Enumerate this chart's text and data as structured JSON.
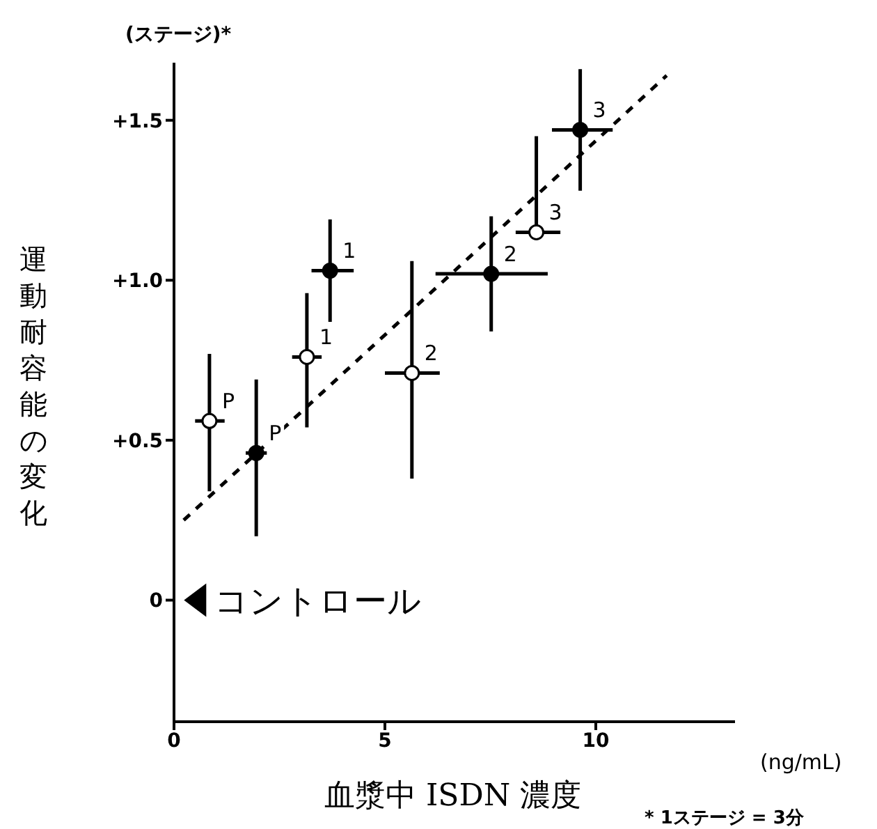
{
  "chart_data": {
    "type": "scatter",
    "xlabel": "血漿中 ISDN 濃度",
    "ylabel": "運動耐容能の変化",
    "annotations": [
      "(ステージ)*",
      "(ng/mL)",
      "* 1ステージ = 3分",
      {
        "text": "P",
        "x": 0.84,
        "y": 0.56
      },
      {
        "text": "1",
        "x": 3.15,
        "y": 0.76
      },
      {
        "text": "2",
        "x": 5.64,
        "y": 0.71
      },
      {
        "text": "3",
        "x": 8.59,
        "y": 1.15
      },
      {
        "text": "P",
        "x": 1.95,
        "y": 0.46
      },
      {
        "text": "1",
        "x": 3.7,
        "y": 1.03
      },
      {
        "text": "2",
        "x": 7.52,
        "y": 1.02
      },
      {
        "text": "3",
        "x": 9.63,
        "y": 1.47
      }
    ],
    "xlim": [
      0,
      13.3
    ],
    "xticks": [
      0,
      5,
      10
    ],
    "ylim": [
      -0.38,
      1.68
    ],
    "yticks": [
      {
        "value": 0,
        "label": "0"
      },
      {
        "value": 0.5,
        "label": "+0.5"
      },
      {
        "value": 1.0,
        "label": "+1.0"
      },
      {
        "value": 1.5,
        "label": "+1.5"
      }
    ],
    "series": [
      {
        "marker": "circle",
        "color": "#ffffff",
        "x": [
          0.84,
          3.15,
          5.64,
          8.59
        ],
        "values": [
          0.56,
          0.76,
          0.71,
          1.15
        ],
        "errors": [
          [
            0.34,
            0.77
          ],
          [
            0.54,
            0.96
          ],
          [
            0.38,
            1.06
          ],
          [
            1.15,
            1.45
          ]
        ],
        "xerrors": [
          [
            0.5,
            1.2
          ],
          [
            2.8,
            3.5
          ],
          [
            5.0,
            6.3
          ],
          [
            8.1,
            9.16
          ]
        ]
      },
      {
        "marker": "circle",
        "color": "#000000",
        "x": [
          1.95,
          3.7,
          7.52,
          9.63
        ],
        "values": [
          0.46,
          1.03,
          1.02,
          1.47
        ],
        "errors": [
          [
            0.2,
            0.69
          ],
          [
            0.87,
            1.19
          ],
          [
            0.84,
            1.2
          ],
          [
            1.28,
            1.66
          ]
        ],
        "xerrors": [
          [
            1.7,
            2.2
          ],
          [
            3.26,
            4.26
          ],
          [
            6.2,
            8.86
          ],
          [
            8.96,
            10.4
          ]
        ]
      },
      {
        "type": "line",
        "marker": "none",
        "line_style": "dashed",
        "color": "#000000",
        "x": [
          0.23,
          11.68
        ],
        "values": [
          0.25,
          1.64
        ]
      },
      {
        "marker": "triangle",
        "name": "コントロール",
        "color": "#000000",
        "x": [
          0.5
        ],
        "values": [
          0
        ]
      }
    ]
  }
}
